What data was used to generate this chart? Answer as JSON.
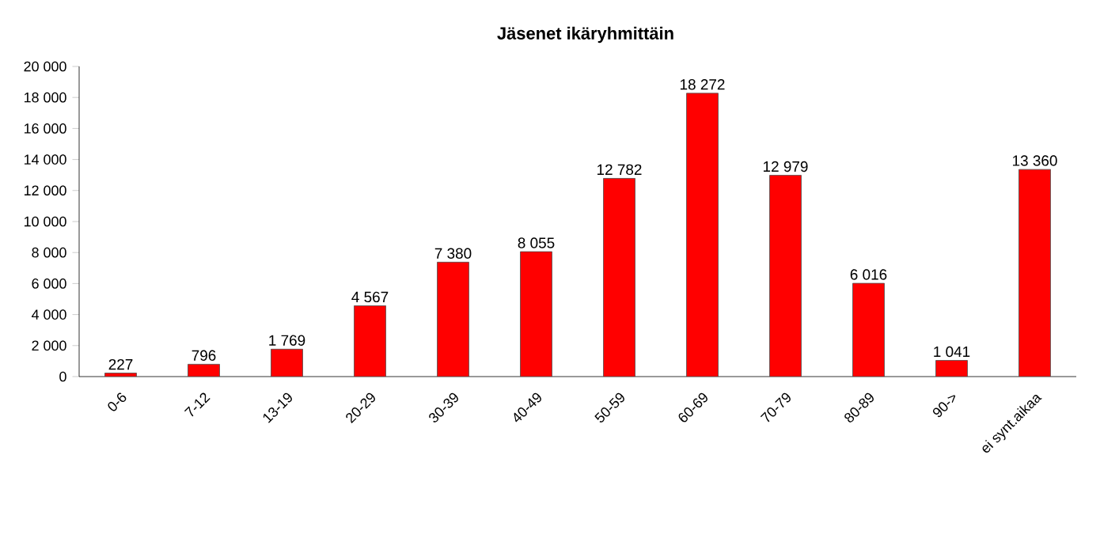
{
  "chart_data": {
    "type": "bar",
    "title": "Jäsenet ikäryhmittäin",
    "categories": [
      "0-6",
      "7-12",
      "13-19",
      "20-29",
      "30-39",
      "40-49",
      "50-59",
      "60-69",
      "70-79",
      "80-89",
      "90->",
      "ei synt.aikaa"
    ],
    "values": [
      227,
      796,
      1769,
      4567,
      7380,
      8055,
      12782,
      18272,
      12979,
      6016,
      1041,
      13360
    ],
    "value_labels": [
      "227",
      "796",
      "1 769",
      "4 567",
      "7 380",
      "8 055",
      "12 782",
      "18 272",
      "12 979",
      "6 016",
      "1 041",
      "13 360"
    ],
    "color": "#ff0000",
    "ylim": [
      0,
      20000
    ],
    "yticks": [
      0,
      {
        "value": 2000,
        "label": "2 000"
      },
      {
        "value": 4000,
        "label": "4 000"
      },
      {
        "value": 6000,
        "label": "6 000"
      },
      {
        "value": 8000,
        "label": "8 000"
      },
      {
        "value": 10000,
        "label": "10 000"
      },
      {
        "value": 12000,
        "label": "12 000"
      },
      {
        "value": 14000,
        "label": "14 000"
      },
      {
        "value": 16000,
        "label": "16 000"
      },
      {
        "value": 18000,
        "label": "18 000"
      },
      {
        "value": 20000,
        "label": "20 000"
      }
    ]
  }
}
